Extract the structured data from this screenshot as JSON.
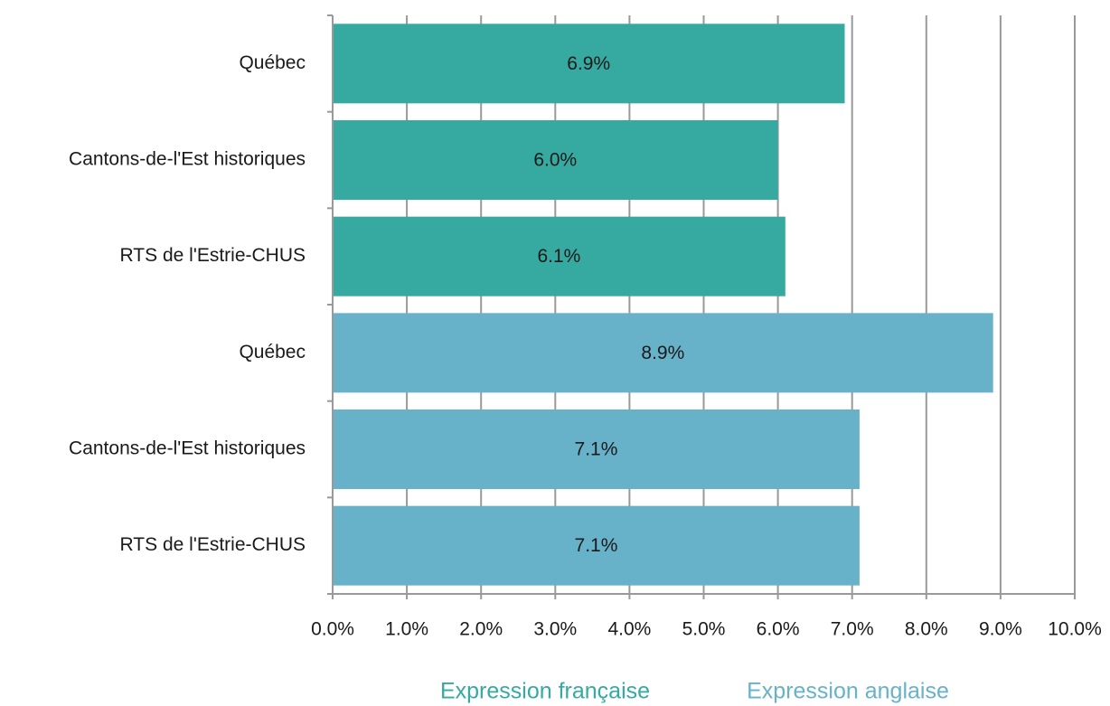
{
  "chart_data": {
    "type": "bar",
    "orientation": "horizontal",
    "categories": [
      "Québec",
      "Cantons-de-l'Est historiques",
      "RTS de l'Estrie-CHUS",
      "Québec",
      "Cantons-de-l'Est historiques",
      "RTS de l'Estrie-CHUS"
    ],
    "series": [
      {
        "name": "Expression française",
        "color": "#36a9a1",
        "values": [
          6.9,
          6.0,
          6.1,
          null,
          null,
          null
        ],
        "value_labels": [
          "6.9%",
          "6.0%",
          "6.1%",
          null,
          null,
          null
        ]
      },
      {
        "name": "Expression anglaise",
        "color": "#67b2c9",
        "values": [
          null,
          null,
          null,
          8.9,
          7.1,
          7.1
        ],
        "value_labels": [
          null,
          null,
          null,
          "8.9%",
          "7.1%",
          "7.1%"
        ]
      }
    ],
    "xlim": [
      0,
      10
    ],
    "xticks": [
      {
        "value": 0,
        "label": "0.0%"
      },
      {
        "value": 1,
        "label": "1.0%"
      },
      {
        "value": 2,
        "label": "2.0%"
      },
      {
        "value": 3,
        "label": "3.0%"
      },
      {
        "value": 4,
        "label": "4.0%"
      },
      {
        "value": 5,
        "label": "5.0%"
      },
      {
        "value": 6,
        "label": "6.0%"
      },
      {
        "value": 7,
        "label": "7.0%"
      },
      {
        "value": 8,
        "label": "8.0%"
      },
      {
        "value": 9,
        "label": "9.0%"
      },
      {
        "value": 10,
        "label": "10.0%"
      }
    ],
    "grid": true,
    "legend": "bottom"
  }
}
